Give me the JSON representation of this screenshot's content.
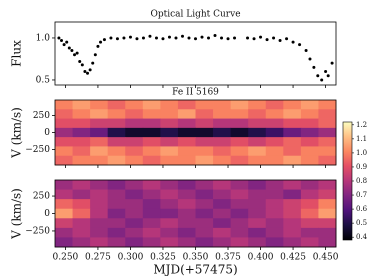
{
  "chart_data": [
    {
      "type": "scatter",
      "title": "Optical Light Curve",
      "ylabel": "Flux",
      "color": "#000000",
      "x": [
        0.245,
        0.247,
        0.249,
        0.251,
        0.253,
        0.255,
        0.257,
        0.259,
        0.261,
        0.263,
        0.265,
        0.267,
        0.269,
        0.271,
        0.273,
        0.275,
        0.277,
        0.28,
        0.285,
        0.29,
        0.295,
        0.3,
        0.305,
        0.31,
        0.315,
        0.32,
        0.325,
        0.33,
        0.335,
        0.34,
        0.345,
        0.35,
        0.355,
        0.36,
        0.365,
        0.37,
        0.375,
        0.38,
        0.39,
        0.395,
        0.4,
        0.405,
        0.41,
        0.415,
        0.42,
        0.425,
        0.43,
        0.435,
        0.438,
        0.441,
        0.444,
        0.447,
        0.45,
        0.452,
        0.455
      ],
      "y": [
        1.0,
        0.97,
        0.92,
        0.95,
        0.88,
        0.85,
        0.8,
        0.82,
        0.72,
        0.68,
        0.6,
        0.58,
        0.62,
        0.7,
        0.8,
        0.9,
        0.95,
        0.98,
        1.0,
        0.99,
        1.0,
        1.01,
        0.99,
        1.0,
        1.02,
        1.0,
        0.99,
        1.01,
        1.0,
        1.02,
        1.0,
        0.99,
        1.01,
        1.0,
        1.03,
        1.0,
        0.99,
        1.0,
        1.0,
        0.99,
        1.01,
        0.98,
        1.0,
        0.97,
        0.99,
        0.95,
        0.92,
        0.85,
        0.75,
        0.65,
        0.55,
        0.5,
        0.6,
        0.55,
        0.7
      ],
      "xlim": [
        0.242,
        0.458
      ],
      "ylim": [
        0.44,
        1.19
      ],
      "yticks": [
        {
          "value": 1,
          "label": "1.0"
        },
        {
          "value": 0.5,
          "label": "0.5"
        }
      ]
    },
    {
      "type": "heatmap",
      "title": "Fe II 5169",
      "ylabel": "V (km/s)",
      "cmap": "magma",
      "clim": [
        0.38,
        1.22
      ],
      "xlim": [
        0.242,
        0.458
      ],
      "ylim": [
        -480,
        480
      ],
      "yticks": [
        250,
        0,
        {
          "value": -250,
          "label": "−250"
        }
      ],
      "z": [
        [
          1.0,
          1.05,
          1.0,
          0.95,
          1.0,
          1.05,
          1.0,
          0.95,
          1.0,
          1.0,
          1.05,
          1.0,
          0.95,
          1.0,
          1.05,
          1.0
        ],
        [
          0.95,
          1.0,
          1.05,
          1.0,
          0.95,
          1.0,
          1.0,
          1.05,
          0.95,
          1.0,
          1.0,
          0.95,
          1.0,
          1.05,
          1.0,
          0.95
        ],
        [
          0.9,
          0.9,
          0.85,
          0.85,
          0.8,
          0.8,
          0.85,
          0.8,
          0.85,
          0.8,
          0.8,
          0.85,
          0.85,
          0.9,
          0.9,
          0.95
        ],
        [
          0.75,
          0.7,
          0.65,
          0.5,
          0.45,
          0.45,
          0.5,
          0.45,
          0.45,
          0.5,
          0.45,
          0.5,
          0.55,
          0.65,
          0.7,
          0.75
        ],
        [
          0.9,
          0.9,
          0.95,
          0.85,
          0.85,
          0.9,
          0.85,
          0.9,
          0.85,
          0.85,
          0.9,
          0.85,
          0.9,
          0.95,
          0.9,
          0.95
        ],
        [
          1.0,
          0.95,
          1.05,
          1.0,
          0.95,
          1.0,
          1.05,
          1.0,
          1.0,
          0.95,
          1.0,
          1.05,
          1.0,
          0.95,
          1.0,
          1.0
        ],
        [
          0.95,
          1.0,
          1.0,
          1.05,
          1.0,
          0.95,
          1.0,
          1.0,
          1.05,
          1.0,
          0.95,
          1.0,
          1.0,
          1.05,
          1.0,
          0.95
        ]
      ]
    },
    {
      "type": "heatmap",
      "ylabel": "V (km/s)",
      "xlabel": "MJD(+57475)",
      "cmap": "magma",
      "clim": [
        0.38,
        1.22
      ],
      "xlim": [
        0.242,
        0.458
      ],
      "ylim": [
        -480,
        480
      ],
      "yticks": [
        250,
        0,
        {
          "value": -250,
          "label": "−250"
        }
      ],
      "xticks": [
        {
          "value": 0.25,
          "label": "0.250"
        },
        {
          "value": 0.275,
          "label": "0.275"
        },
        {
          "value": 0.3,
          "label": "0.300"
        },
        {
          "value": 0.325,
          "label": "0.325"
        },
        {
          "value": 0.35,
          "label": "0.350"
        },
        {
          "value": 0.375,
          "label": "0.375"
        },
        {
          "value": 0.4,
          "label": "0.400"
        },
        {
          "value": 0.425,
          "label": "0.425"
        },
        {
          "value": 0.45,
          "label": "0.450"
        }
      ],
      "colorbar_ticks": [
        0.4,
        0.5,
        0.6,
        0.7,
        0.8,
        0.9,
        {
          "value": 1,
          "label": "1.0"
        },
        1.1,
        1.2
      ],
      "z": [
        [
          0.75,
          0.8,
          0.75,
          0.7,
          0.75,
          0.8,
          0.75,
          0.7,
          0.75,
          0.8,
          0.75,
          0.7,
          0.75,
          0.8,
          0.75,
          0.8
        ],
        [
          0.8,
          0.75,
          0.8,
          0.75,
          0.7,
          0.75,
          0.8,
          0.75,
          0.7,
          0.75,
          0.8,
          0.75,
          0.75,
          0.7,
          0.8,
          0.85
        ],
        [
          0.95,
          0.9,
          0.8,
          0.75,
          0.75,
          0.7,
          0.75,
          0.8,
          0.75,
          0.7,
          0.75,
          0.75,
          0.8,
          0.85,
          0.9,
          1.0
        ],
        [
          1.05,
          0.95,
          0.8,
          0.7,
          0.75,
          0.7,
          0.7,
          0.75,
          0.7,
          0.75,
          0.7,
          0.75,
          0.8,
          0.85,
          0.95,
          1.05
        ],
        [
          0.85,
          0.8,
          0.75,
          0.75,
          0.7,
          0.75,
          0.8,
          0.75,
          0.75,
          0.7,
          0.75,
          0.8,
          0.75,
          0.8,
          0.85,
          0.85
        ],
        [
          0.75,
          0.8,
          0.75,
          0.7,
          0.75,
          0.8,
          0.75,
          0.7,
          0.75,
          0.8,
          0.75,
          0.7,
          0.75,
          0.8,
          0.75,
          0.75
        ],
        [
          0.7,
          0.75,
          0.8,
          0.75,
          0.7,
          0.75,
          0.8,
          0.75,
          0.7,
          0.75,
          0.8,
          0.75,
          0.7,
          0.75,
          0.8,
          0.75
        ]
      ]
    }
  ]
}
